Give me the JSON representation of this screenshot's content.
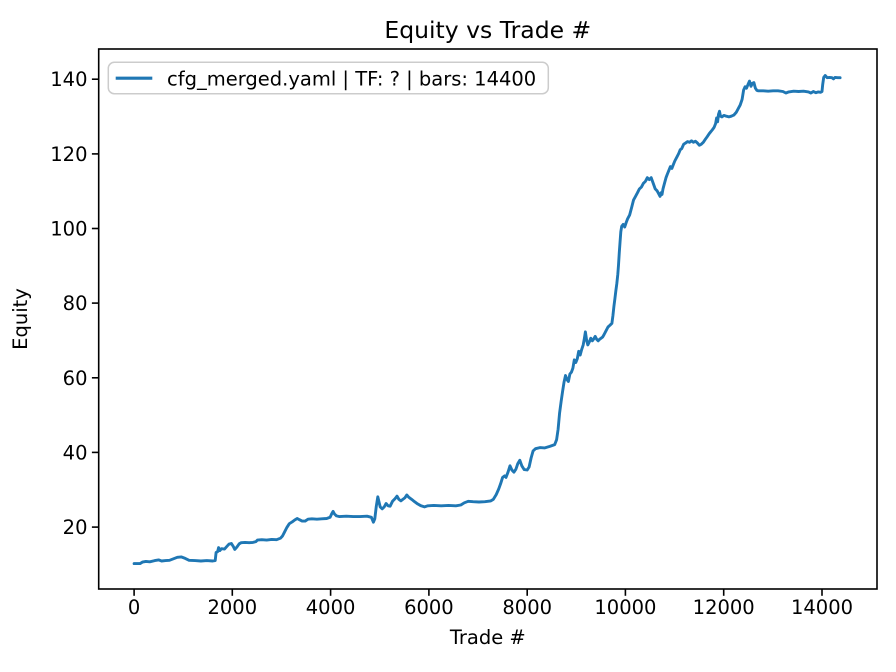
{
  "figure": {
    "background": "#ffffff"
  },
  "colors": {
    "line": "#1f77b4",
    "axis": "#000000",
    "tick_label": "#000000",
    "legend_border": "#cccccc",
    "legend_background": "#ffffff"
  },
  "chart_data": {
    "type": "line",
    "title": "Equity vs Trade #",
    "xlabel": "Trade #",
    "ylabel": "Equity",
    "grid": false,
    "xlim": [
      -720,
      15120
    ],
    "ylim": [
      3.4,
      148.1
    ],
    "x_ticks": [
      0,
      2000,
      4000,
      6000,
      8000,
      10000,
      12000,
      14000
    ],
    "y_ticks": [
      20,
      40,
      60,
      80,
      100,
      120,
      140
    ],
    "legend": {
      "position": "upper left",
      "entries": [
        {
          "label": "cfg_merged.yaml | TF: ? | bars: 14400",
          "color": "#1f77b4"
        }
      ]
    },
    "series": [
      {
        "name": "cfg_merged.yaml | TF: ? | bars: 14400",
        "color": "#1f77b4",
        "x": [
          0,
          120,
          170,
          240,
          320,
          420,
          500,
          560,
          640,
          720,
          800,
          880,
          960,
          1040,
          1120,
          1240,
          1360,
          1480,
          1600,
          1650,
          1670,
          1700,
          1720,
          1745,
          1780,
          1840,
          1880,
          1930,
          1980,
          2020,
          2050,
          2090,
          2140,
          2180,
          2260,
          2340,
          2420,
          2480,
          2510,
          2600,
          2700,
          2800,
          2900,
          2980,
          3020,
          3060,
          3110,
          3160,
          3220,
          3270,
          3320,
          3360,
          3420,
          3480,
          3540,
          3620,
          3720,
          3820,
          3920,
          3990,
          4020,
          4050,
          4080,
          4120,
          4180,
          4320,
          4460,
          4600,
          4740,
          4830,
          4870,
          4900,
          4930,
          4960,
          4990,
          5010,
          5050,
          5090,
          5130,
          5170,
          5210,
          5260,
          5310,
          5350,
          5390,
          5430,
          5470,
          5510,
          5550,
          5590,
          5650,
          5710,
          5770,
          5840,
          5910,
          5980,
          6100,
          6250,
          6400,
          6550,
          6650,
          6720,
          6800,
          6900,
          7020,
          7140,
          7260,
          7310,
          7370,
          7420,
          7460,
          7500,
          7540,
          7570,
          7610,
          7650,
          7690,
          7730,
          7770,
          7810,
          7850,
          7890,
          7940,
          8000,
          8040,
          8080,
          8120,
          8170,
          8260,
          8360,
          8460,
          8560,
          8600,
          8630,
          8660,
          8690,
          8720,
          8750,
          8780,
          8810,
          8840,
          8870,
          8900,
          8930,
          8960,
          8990,
          9020,
          9050,
          9080,
          9110,
          9140,
          9165,
          9185,
          9210,
          9235,
          9265,
          9295,
          9325,
          9355,
          9385,
          9415,
          9445,
          9475,
          9505,
          9535,
          9565,
          9605,
          9645,
          9685,
          9725,
          9745,
          9765,
          9785,
          9805,
          9825,
          9845,
          9860,
          9875,
          9890,
          9905,
          9925,
          9955,
          9985,
          10015,
          10045,
          10085,
          10125,
          10165,
          10205,
          10245,
          10285,
          10325,
          10365,
          10405,
          10445,
          10485,
          10525,
          10565,
          10605,
          10645,
          10685,
          10705,
          10725,
          10745,
          10765,
          10795,
          10825,
          10855,
          10885,
          10915,
          10945,
          10975,
          11005,
          11045,
          11085,
          11115,
          11145,
          11185,
          11225,
          11265,
          11305,
          11345,
          11385,
          11425,
          11465,
          11505,
          11545,
          11585,
          11625,
          11665,
          11705,
          11735,
          11765,
          11805,
          11835,
          11855,
          11875,
          11895,
          11915,
          11935,
          11965,
          12005,
          12055,
          12105,
          12155,
          12205,
          12255,
          12295,
          12335,
          12375,
          12405,
          12435,
          12465,
          12495,
          12525,
          12555,
          12585,
          12615,
          12645,
          12675,
          12705,
          12805,
          12905,
          13005,
          13105,
          13205,
          13265,
          13325,
          13425,
          13525,
          13625,
          13725,
          13775,
          13825,
          13875,
          13925,
          13975,
          14000,
          14015,
          14035,
          14065,
          14105,
          14155,
          14205,
          14235,
          14265,
          14325,
          14370
        ],
        "y": [
          10.2,
          10.2,
          10.6,
          10.8,
          10.7,
          11.0,
          11.2,
          10.9,
          11.0,
          11.1,
          11.5,
          11.9,
          12.0,
          11.6,
          11.1,
          11.0,
          10.9,
          11.0,
          10.9,
          11.0,
          13.2,
          13.4,
          14.5,
          13.7,
          14.2,
          14.1,
          14.7,
          15.4,
          15.6,
          14.8,
          14.0,
          14.6,
          15.5,
          15.8,
          15.9,
          15.8,
          15.9,
          16.1,
          16.5,
          16.6,
          16.5,
          16.7,
          16.6,
          17.0,
          17.6,
          18.6,
          19.9,
          20.9,
          21.4,
          21.9,
          22.3,
          22.0,
          21.6,
          21.6,
          22.1,
          22.2,
          22.1,
          22.2,
          22.3,
          22.6,
          23.5,
          24.2,
          23.5,
          23.0,
          22.8,
          22.9,
          22.8,
          22.8,
          22.9,
          22.6,
          21.3,
          22.2,
          25.6,
          28.1,
          26.4,
          25.4,
          24.9,
          25.4,
          26.3,
          25.7,
          25.6,
          26.9,
          27.6,
          28.3,
          27.4,
          27.0,
          27.4,
          27.8,
          28.6,
          28.0,
          27.4,
          26.8,
          26.2,
          25.7,
          25.4,
          25.7,
          25.8,
          25.7,
          25.8,
          25.7,
          25.9,
          26.5,
          26.9,
          26.8,
          26.7,
          26.8,
          27.0,
          27.4,
          28.7,
          30.2,
          31.6,
          33.3,
          33.7,
          33.3,
          34.7,
          36.4,
          35.3,
          34.7,
          35.5,
          37.0,
          37.9,
          36.4,
          35.4,
          35.3,
          36.1,
          38.5,
          40.4,
          41.0,
          41.3,
          41.2,
          41.6,
          42.1,
          43.4,
          46.2,
          50.6,
          53.6,
          56.2,
          58.8,
          60.6,
          59.5,
          59.0,
          61.0,
          61.5,
          62.6,
          64.8,
          64.1,
          65.1,
          67.1,
          66.1,
          67.6,
          68.8,
          70.6,
          72.3,
          70.1,
          68.8,
          69.6,
          70.6,
          69.9,
          70.4,
          71.1,
          70.3,
          69.9,
          70.3,
          70.6,
          70.9,
          71.6,
          72.6,
          73.6,
          74.1,
          74.6,
          76.6,
          79.1,
          81.2,
          83.2,
          85.2,
          87.7,
          90.2,
          93.6,
          96.2,
          99.1,
          100.6,
          101.1,
          100.4,
          101.6,
          102.6,
          103.6,
          105.6,
          107.6,
          108.6,
          109.6,
          110.6,
          111.1,
          112.1,
          112.6,
          113.6,
          113.1,
          113.6,
          112.1,
          110.6,
          110.1,
          109.1,
          108.6,
          109.6,
          109.1,
          110.6,
          112.1,
          113.6,
          114.6,
          115.6,
          116.6,
          116.1,
          117.1,
          118.1,
          119.1,
          120.1,
          121.1,
          121.4,
          122.6,
          122.9,
          123.3,
          123.1,
          123.5,
          123.1,
          123.4,
          122.9,
          122.3,
          122.6,
          123.1,
          123.9,
          124.6,
          125.4,
          125.9,
          126.4,
          127.1,
          128.1,
          129.6,
          128.6,
          130.6,
          131.4,
          130.1,
          129.9,
          130.3,
          130.1,
          129.9,
          130.1,
          130.4,
          131.1,
          132.1,
          133.1,
          134.6,
          137.1,
          138.0,
          137.6,
          138.6,
          139.5,
          138.1,
          138.9,
          139.1,
          137.6,
          137.0,
          136.9,
          136.9,
          136.8,
          136.9,
          136.9,
          136.7,
          136.3,
          136.6,
          136.8,
          136.7,
          136.8,
          136.6,
          136.3,
          136.7,
          136.4,
          136.6,
          136.5,
          136.7,
          138.6,
          140.5,
          141.0,
          140.4,
          140.5,
          140.4,
          140.1,
          140.5,
          140.4,
          140.4
        ]
      }
    ]
  }
}
